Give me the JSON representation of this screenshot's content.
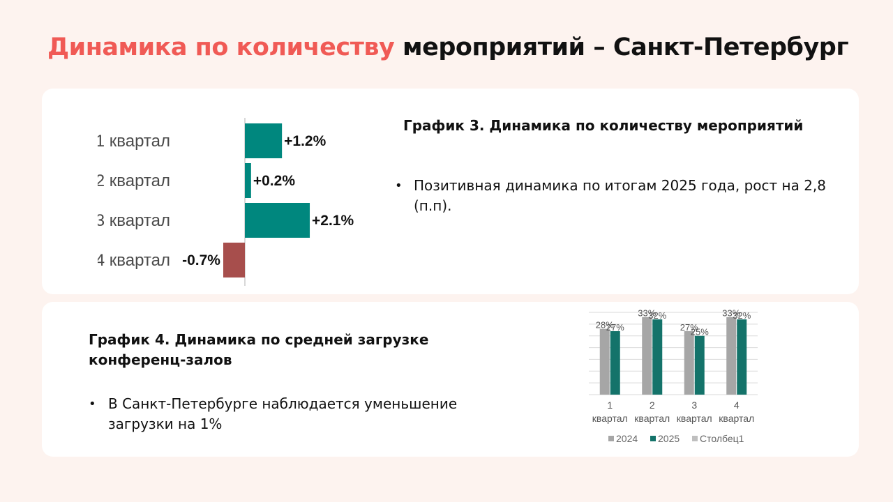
{
  "header": {
    "title_accent": "Динамика по количеству",
    "title_rest": "мероприятий – Санкт-Петербург"
  },
  "colors": {
    "accent": "#f05a55",
    "teal": "#00877e",
    "negative": "#a74e4c",
    "grey": "#a6a6a6",
    "dark_teal": "#14736a"
  },
  "section3": {
    "title": "График 3. Динамика по количеству мероприятий",
    "bullet": "Позитивная динамика по итогам 2025 года, рост на 2,8 (п.п)."
  },
  "section4": {
    "title": "График 4. Динамика по средней загрузке конференц-залов",
    "bullet": "В Санкт-Петербурге наблюдается уменьшение загрузки на 1%"
  },
  "chart_data": [
    {
      "type": "bar",
      "orientation": "horizontal",
      "categories": [
        "1 квартал",
        "2 квартал",
        "3 квартал",
        "4 квартал"
      ],
      "values": [
        1.2,
        0.2,
        2.1,
        -0.7
      ],
      "value_labels": [
        "+1.2%",
        "+0.2%",
        "+2.1%",
        "-0.7%"
      ],
      "title": "",
      "xlabel": "",
      "ylabel": "",
      "xlim": [
        -0.7,
        2.1
      ]
    },
    {
      "type": "bar",
      "categories": [
        "1 квартал",
        "2 квартал",
        "3 квартал",
        "4 квартал"
      ],
      "series": [
        {
          "name": "2024",
          "values": [
            28,
            33,
            27,
            33
          ],
          "labels": [
            "28%",
            "33%",
            "27%",
            "33%"
          ]
        },
        {
          "name": "2025",
          "values": [
            27,
            32,
            25,
            32
          ],
          "labels": [
            "27%",
            "32%",
            "25%",
            "32%"
          ]
        }
      ],
      "legend": [
        "2024",
        "2025",
        "Столбец1"
      ],
      "legend_position": "bottom",
      "grid": true,
      "ylim": [
        0,
        35
      ],
      "title": "",
      "xlabel": "",
      "ylabel": ""
    }
  ]
}
